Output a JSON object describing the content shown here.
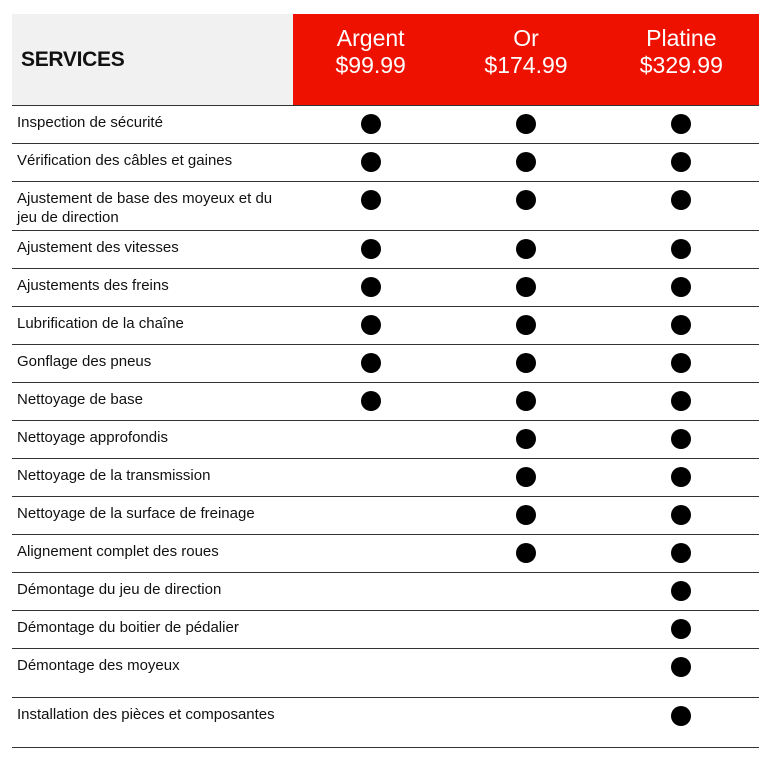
{
  "header": {
    "services_label": "SERVICES",
    "plans": [
      {
        "name": "Argent",
        "price": "$99.99"
      },
      {
        "name": "Or",
        "price": "$174.99"
      },
      {
        "name": "Platine",
        "price": "$329.99"
      }
    ]
  },
  "colors": {
    "accent": "#ee1100",
    "header_bg": "#f1f1f1",
    "dot": "#000000"
  },
  "rows": [
    {
      "label": "Inspection de sécurité",
      "included": [
        true,
        true,
        true
      ]
    },
    {
      "label": "Vérification des câbles et gaines",
      "included": [
        true,
        true,
        true
      ]
    },
    {
      "label": "Ajustement de base des moyeux et du jeu de direction",
      "included": [
        true,
        true,
        true
      ]
    },
    {
      "label": "Ajustement des vitesses",
      "included": [
        true,
        true,
        true
      ]
    },
    {
      "label": "Ajustements des freins",
      "included": [
        true,
        true,
        true
      ]
    },
    {
      "label": "Lubrification de la chaîne",
      "included": [
        true,
        true,
        true
      ]
    },
    {
      "label": "Gonflage des pneus",
      "included": [
        true,
        true,
        true
      ]
    },
    {
      "label": "Nettoyage de base",
      "included": [
        true,
        true,
        true
      ]
    },
    {
      "label": "Nettoyage approfondis",
      "included": [
        false,
        true,
        true
      ]
    },
    {
      "label": "Nettoyage de la transmission",
      "included": [
        false,
        true,
        true
      ]
    },
    {
      "label": "Nettoyage de la surface de freinage",
      "included": [
        false,
        true,
        true
      ]
    },
    {
      "label": "Alignement complet des roues",
      "included": [
        false,
        true,
        true
      ]
    },
    {
      "label": "Démontage du jeu de direction",
      "included": [
        false,
        false,
        true
      ]
    },
    {
      "label": "Démontage du boitier de pédalier",
      "included": [
        false,
        false,
        true
      ]
    },
    {
      "label": "Démontage des moyeux",
      "included": [
        false,
        false,
        true
      ]
    },
    {
      "label": "Installation des pièces et composantes",
      "included": [
        false,
        false,
        true
      ]
    }
  ]
}
